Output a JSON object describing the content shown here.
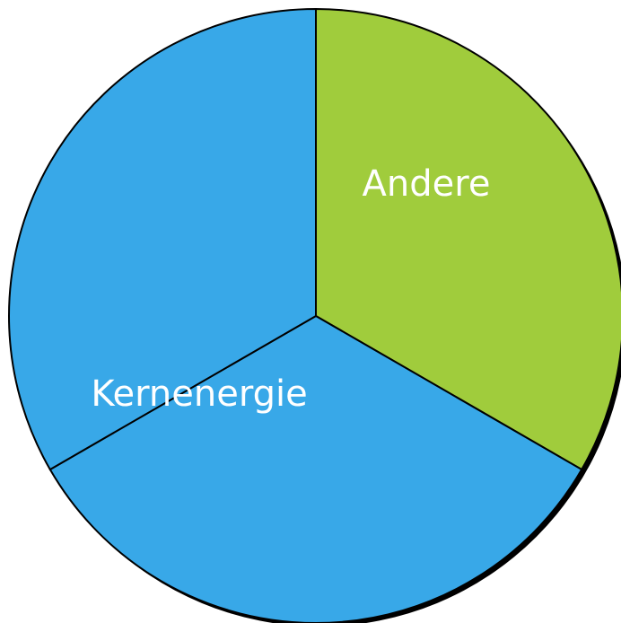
{
  "chart_data": {
    "type": "pie",
    "categories": [
      "Andere",
      "Kernenergie",
      null
    ],
    "values": [
      33.3,
      33.3,
      33.3
    ],
    "colors": [
      "#a0cc3c",
      "#38a8e8",
      "#38a8e8"
    ]
  }
}
